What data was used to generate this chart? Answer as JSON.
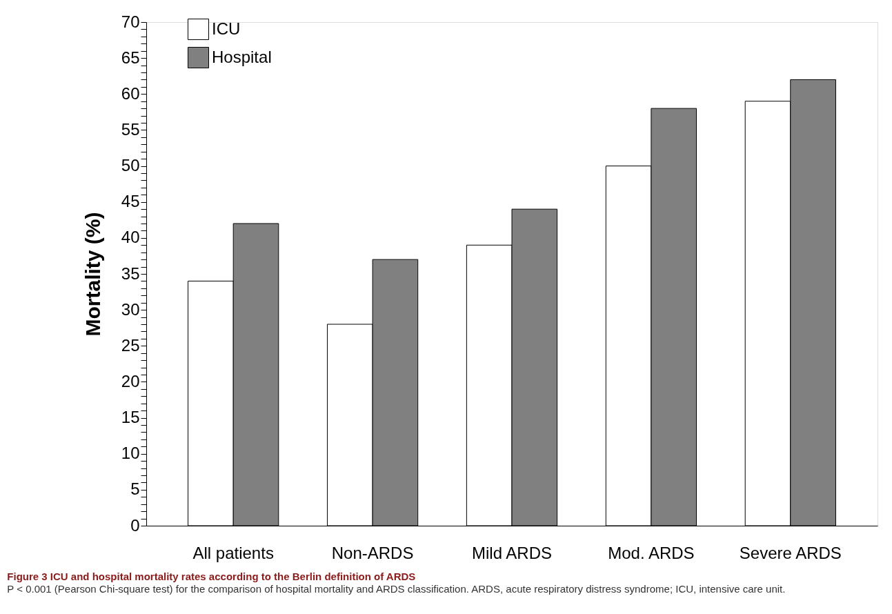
{
  "chart_data": {
    "type": "bar",
    "title": "Figure 3 ICU and hospital mortality rates according to the Berlin definition of ARDS",
    "annotations": [
      "P < 0.001 (Pearson Chi-square test) for the comparison of hospital mortality and ARDS classification. ARDS, acute respiratory distress syndrome; ICU, intensive care unit."
    ],
    "ylabel": "Mortality (%)",
    "categories": [
      "All patients",
      "Non-ARDS",
      "Mild ARDS",
      "Mod. ARDS",
      "Severe ARDS"
    ],
    "series": [
      {
        "name": "ICU",
        "color": "#ffffff",
        "values": [
          34,
          28,
          39,
          50,
          59
        ]
      },
      {
        "name": "Hospital",
        "color": "#808080",
        "values": [
          42,
          37,
          44,
          58,
          62
        ]
      }
    ],
    "ylim": [
      0,
      70
    ],
    "yticks": [
      0,
      {
        "value": 1,
        "label": null
      },
      {
        "value": 2,
        "label": null
      },
      {
        "value": 3,
        "label": null
      },
      {
        "value": 4,
        "label": null
      },
      5,
      {
        "value": 6,
        "label": null
      },
      {
        "value": 7,
        "label": null
      },
      {
        "value": 8,
        "label": null
      },
      {
        "value": 9,
        "label": null
      },
      10,
      {
        "value": 11,
        "label": null
      },
      {
        "value": 12,
        "label": null
      },
      {
        "value": 13,
        "label": null
      },
      {
        "value": 14,
        "label": null
      },
      15,
      {
        "value": 16,
        "label": null
      },
      {
        "value": 17,
        "label": null
      },
      {
        "value": 18,
        "label": null
      },
      {
        "value": 19,
        "label": null
      },
      20,
      {
        "value": 21,
        "label": null
      },
      {
        "value": 22,
        "label": null
      },
      {
        "value": 23,
        "label": null
      },
      {
        "value": 24,
        "label": null
      },
      25,
      {
        "value": 26,
        "label": null
      },
      {
        "value": 27,
        "label": null
      },
      {
        "value": 28,
        "label": null
      },
      {
        "value": 29,
        "label": null
      },
      30,
      {
        "value": 31,
        "label": null
      },
      {
        "value": 32,
        "label": null
      },
      {
        "value": 33,
        "label": null
      },
      {
        "value": 34,
        "label": null
      },
      35,
      {
        "value": 36,
        "label": null
      },
      {
        "value": 37,
        "label": null
      },
      {
        "value": 38,
        "label": null
      },
      {
        "value": 39,
        "label": null
      },
      40,
      {
        "value": 41,
        "label": null
      },
      {
        "value": 42,
        "label": null
      },
      {
        "value": 43,
        "label": null
      },
      {
        "value": 44,
        "label": null
      },
      45,
      {
        "value": 46,
        "label": null
      },
      {
        "value": 47,
        "label": null
      },
      {
        "value": 48,
        "label": null
      },
      {
        "value": 49,
        "label": null
      },
      50,
      {
        "value": 51,
        "label": null
      },
      {
        "value": 52,
        "label": null
      },
      {
        "value": 53,
        "label": null
      },
      {
        "value": 54,
        "label": null
      },
      55,
      {
        "value": 56,
        "label": null
      },
      {
        "value": 57,
        "label": null
      },
      {
        "value": 58,
        "label": null
      },
      {
        "value": 59,
        "label": null
      },
      60,
      {
        "value": 61,
        "label": null
      },
      {
        "value": 62,
        "label": null
      },
      {
        "value": 63,
        "label": null
      },
      {
        "value": 64,
        "label": null
      },
      65,
      {
        "value": 66,
        "label": null
      },
      {
        "value": 67,
        "label": null
      },
      {
        "value": 68,
        "label": null
      },
      {
        "value": 69,
        "label": null
      },
      70
    ],
    "legend": "top left",
    "grid": false
  }
}
